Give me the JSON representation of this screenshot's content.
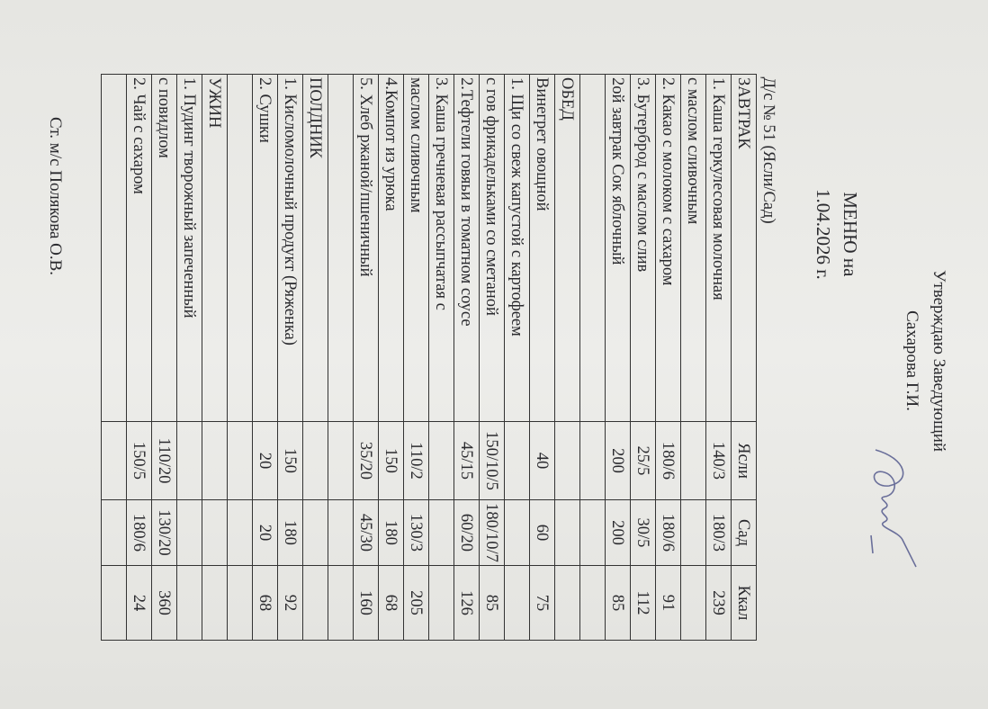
{
  "header": {
    "approve_line1": "Утверждаю Заведующий",
    "approve_line2": "Сахарова Г.И.",
    "menu_line1": "МЕНЮ на",
    "menu_line2": "1.04.2026 г."
  },
  "table": {
    "title": "Д/с  № 51  (Ясли/Сад)",
    "rows": [
      [
        "ЗАВТРАК",
        "Ясли",
        "Сад",
        "Ккал"
      ],
      [
        "1. Каша геркулесовая молочная",
        "140/3",
        "180/3",
        "239"
      ],
      [
        "  с маслом  сливочным",
        "",
        "",
        ""
      ],
      [
        "2. Какао с молоком с сахаром",
        "180/6",
        "180/6",
        "91"
      ],
      [
        "3. Бутерброд с маслом слив",
        "25/5",
        "30/5",
        "112"
      ],
      [
        "2ой завтрак  Сок яблочный",
        "200",
        "200",
        "85"
      ],
      [
        "",
        "",
        "",
        ""
      ],
      [
        "ОБЕД",
        "",
        "",
        ""
      ],
      [
        "Винегрет овощной",
        "40",
        "60",
        "75"
      ],
      [
        "1. Щи со свеж капустой с картофеем",
        "",
        "",
        ""
      ],
      [
        "с гов фрикадельками со сметаной",
        "150/10/5",
        "180/10/7",
        "85"
      ],
      [
        "2.Тефтели говяьи в томатном соусе",
        "45/15",
        "60/20",
        "126"
      ],
      [
        "3. Каша гречневая рассыпчатая с",
        "",
        "",
        ""
      ],
      [
        "маслом сливочным",
        "110/2",
        "130/3",
        "205"
      ],
      [
        "4.Компот из урюка",
        "150",
        "180",
        "68"
      ],
      [
        "5. Хлеб ржаной/пшеничный",
        "35/20",
        "45/30",
        "160"
      ],
      [
        "",
        "",
        "",
        ""
      ],
      [
        "ПОЛДНИК",
        "",
        "",
        ""
      ],
      [
        "1. Кисломолочный продукт (Ряженка)",
        "150",
        "180",
        "92"
      ],
      [
        "2. Сушки",
        "20",
        "20",
        "68"
      ],
      [
        "",
        "",
        "",
        ""
      ],
      [
        "УЖИН",
        "",
        "",
        ""
      ],
      [
        "1. Пудинг творожный запеченный",
        "",
        "",
        ""
      ],
      [
        "с повидлом",
        "110/20",
        "130/20",
        "360"
      ],
      [
        "2. Чай с сахаром",
        "150/5",
        "180/6",
        "24"
      ],
      [
        "",
        "",
        "",
        ""
      ]
    ]
  },
  "footer": {
    "signature_line": "Ст. м/с Полякова О.В."
  },
  "colors": {
    "ink": "#2a2a2e",
    "paper": "#e9e9e6",
    "signature_ink": "#6a6f9a"
  }
}
